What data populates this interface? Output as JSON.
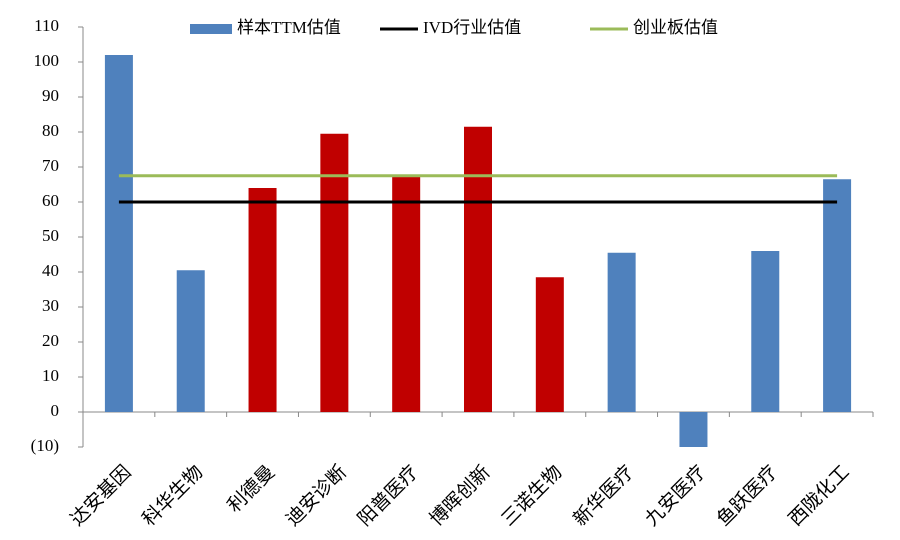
{
  "chart_data": {
    "type": "bar",
    "categories": [
      "达安基因",
      "科华生物",
      "利德曼",
      "迪安诊断",
      "阳普医疗",
      "博晖创新",
      "三诺生物",
      "新华医疗",
      "九安医疗",
      "鱼跃医疗",
      "西陇化工"
    ],
    "series": [
      {
        "name": "样本TTM估值",
        "type": "bar",
        "color": "#4f81bd",
        "colors": [
          "#4f81bd",
          "#4f81bd",
          "#c00000",
          "#c00000",
          "#c00000",
          "#c00000",
          "#c00000",
          "#4f81bd",
          "#4f81bd",
          "#4f81bd",
          "#4f81bd"
        ],
        "values": [
          102,
          40.5,
          64,
          79.5,
          67.5,
          81.5,
          38.5,
          45.5,
          -10,
          46,
          66.5
        ]
      },
      {
        "name": "IVD行业估值",
        "type": "line",
        "color": "#000000",
        "values": [
          60,
          60,
          60,
          60,
          60,
          60,
          60,
          60,
          60,
          60,
          60
        ]
      },
      {
        "name": "创业板估值",
        "type": "line",
        "color": "#9bbb59",
        "values": [
          67.5,
          67.5,
          67.5,
          67.5,
          67.5,
          67.5,
          67.5,
          67.5,
          67.5,
          67.5,
          67.5
        ]
      }
    ],
    "ylim": [
      -10,
      110
    ],
    "yticks": [
      {
        "value": -10,
        "label": "(10)"
      },
      0,
      10,
      20,
      30,
      40,
      50,
      60,
      70,
      80,
      90,
      100,
      110
    ],
    "negative_tick_color": "#ff0000",
    "legend": "top"
  }
}
